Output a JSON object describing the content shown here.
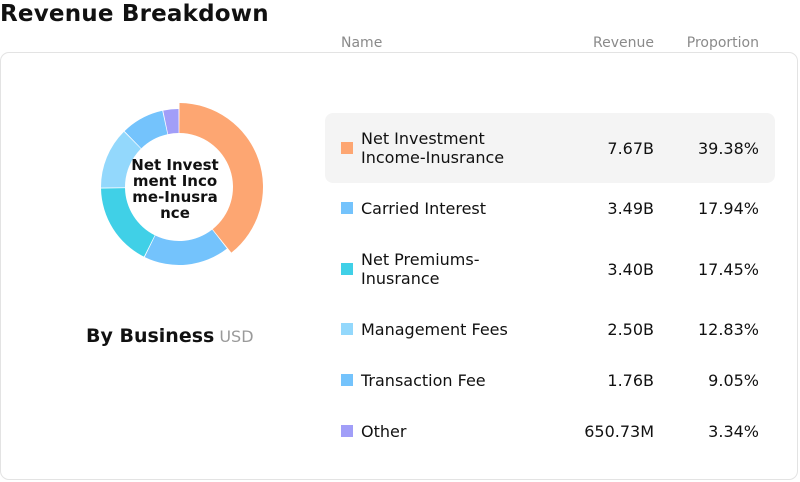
{
  "page": {
    "title": "Revenue Breakdown"
  },
  "donut": {
    "center_label": "Net Investment Income-Inusrance",
    "caption": "By Business",
    "unit": "USD"
  },
  "table": {
    "headers": {
      "name": "Name",
      "revenue": "Revenue",
      "proportion": "Proportion"
    },
    "rows": [
      {
        "name": "Net Investment Income-Inusrance",
        "revenue": "7.67B",
        "proportion": "39.38%",
        "color": "#fda672",
        "highlighted": true
      },
      {
        "name": "Carried Interest",
        "revenue": "3.49B",
        "proportion": "17.94%",
        "color": "#74c3fc",
        "highlighted": false
      },
      {
        "name": "Net Premiums-Inusrance",
        "revenue": "3.40B",
        "proportion": "17.45%",
        "color": "#40d0e7",
        "highlighted": false
      },
      {
        "name": "Management Fees",
        "revenue": "2.50B",
        "proportion": "12.83%",
        "color": "#93d8fc",
        "highlighted": false
      },
      {
        "name": "Transaction Fee",
        "revenue": "1.76B",
        "proportion": "9.05%",
        "color": "#74c3fc",
        "highlighted": false
      },
      {
        "name": "Other",
        "revenue": "650.73M",
        "proportion": "3.34%",
        "color": "#a19ef8",
        "highlighted": false
      }
    ]
  },
  "chart_data": {
    "type": "pie",
    "title": "",
    "categories": [
      "Net Investment Income-Inusrance",
      "Carried Interest",
      "Net Premiums-Inusrance",
      "Management Fees",
      "Transaction Fee",
      "Other"
    ],
    "values": [
      39.38,
      17.94,
      17.45,
      12.83,
      9.05,
      3.34
    ],
    "colors": [
      "#fda672",
      "#74c3fc",
      "#40d0e7",
      "#93d8fc",
      "#74c3fc",
      "#a19ef8"
    ],
    "highlighted": "Net Investment Income-Inusrance"
  }
}
